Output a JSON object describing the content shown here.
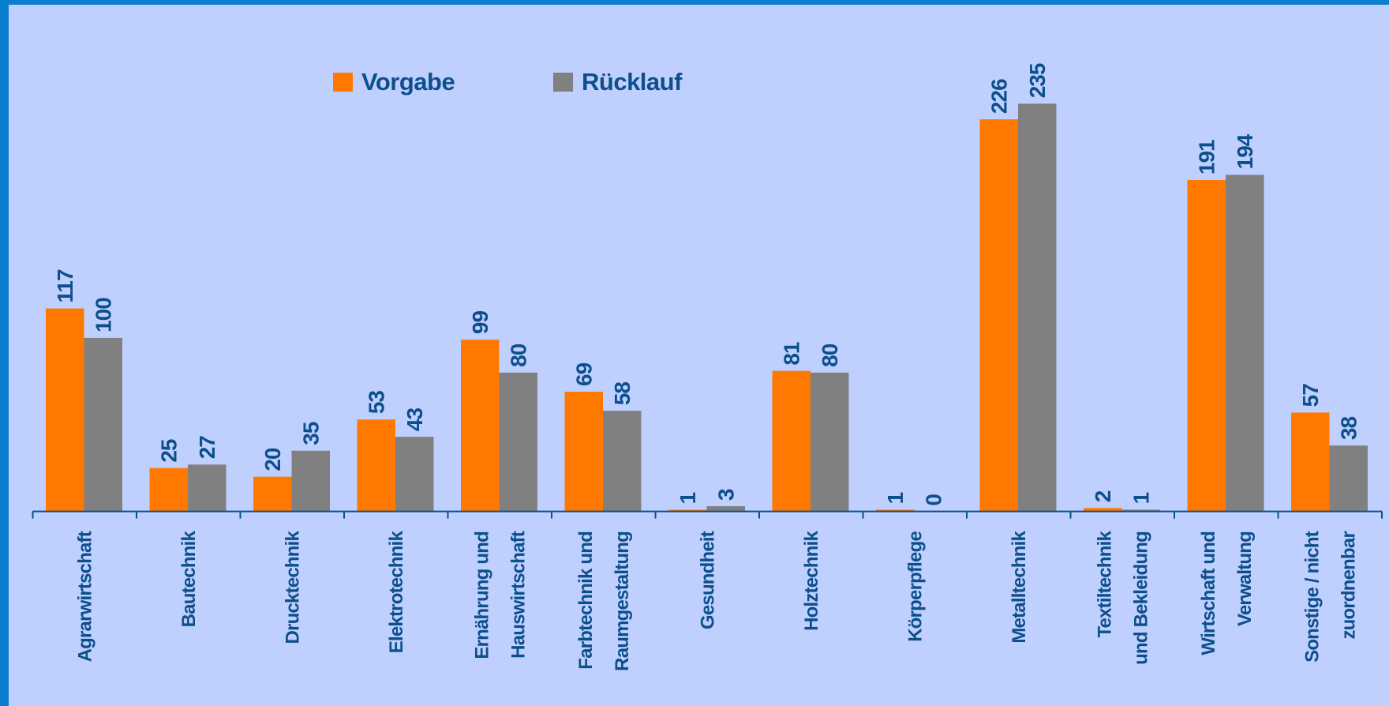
{
  "chart_data": {
    "type": "bar",
    "categories": [
      [
        "Agrarwirtschaft"
      ],
      [
        "Bautechnik"
      ],
      [
        "Drucktechnik"
      ],
      [
        "Elektrotechnik"
      ],
      [
        "Ernährung und",
        "Hauswirtschaft"
      ],
      [
        "Farbtechnik und",
        "Raumgestaltung"
      ],
      [
        "Gesundheit"
      ],
      [
        "Holztechnik"
      ],
      [
        "Körperpflege"
      ],
      [
        "Metalltechnik"
      ],
      [
        "Textiltechnik",
        "und Bekleidung"
      ],
      [
        "Wirtschaft und",
        "Verwaltung"
      ],
      [
        "Sonstige / nicht",
        "zuordnenbar"
      ]
    ],
    "series": [
      {
        "name": "Vorgabe",
        "color": "#ff7900",
        "values": [
          117,
          25,
          20,
          53,
          99,
          69,
          1,
          81,
          1,
          226,
          2,
          191,
          57
        ]
      },
      {
        "name": "Rücklauf",
        "color": "#808080",
        "values": [
          100,
          27,
          35,
          43,
          80,
          58,
          3,
          80,
          0,
          235,
          1,
          194,
          38
        ]
      }
    ],
    "legend": "top-left"
  }
}
